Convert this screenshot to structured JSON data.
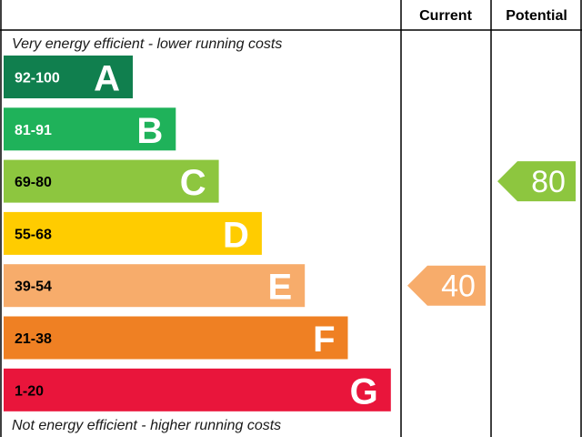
{
  "header": {
    "current": "Current",
    "potential": "Potential"
  },
  "notes": {
    "top": "Very energy efficient - lower running costs",
    "bottom": "Not energy efficient - higher running costs"
  },
  "chart_data": {
    "type": "bar",
    "categories": [
      "A",
      "B",
      "C",
      "D",
      "E",
      "F",
      "G"
    ],
    "bands": [
      {
        "letter": "A",
        "range": "92-100",
        "min": 92,
        "max": 100,
        "color": "#107f4e",
        "range_text_color": "#ffffff"
      },
      {
        "letter": "B",
        "range": "81-91",
        "min": 81,
        "max": 91,
        "color": "#1fb25a",
        "range_text_color": "#ffffff"
      },
      {
        "letter": "C",
        "range": "69-80",
        "min": 69,
        "max": 80,
        "color": "#8dc63f",
        "range_text_color": "#000000"
      },
      {
        "letter": "D",
        "range": "55-68",
        "min": 55,
        "max": 68,
        "color": "#ffcc00",
        "range_text_color": "#000000"
      },
      {
        "letter": "E",
        "range": "39-54",
        "min": 39,
        "max": 54,
        "color": "#f7ac6b",
        "range_text_color": "#000000"
      },
      {
        "letter": "F",
        "range": "21-38",
        "min": 21,
        "max": 38,
        "color": "#ef8023",
        "range_text_color": "#000000"
      },
      {
        "letter": "G",
        "range": "1-20",
        "min": 1,
        "max": 20,
        "color": "#e9153b",
        "range_text_color": "#000000"
      }
    ],
    "ratings": [
      {
        "column": "current",
        "value": 40,
        "band": "E",
        "color": "#f7ac6b"
      },
      {
        "column": "potential",
        "value": 80,
        "band": "C",
        "color": "#8dc63f"
      }
    ]
  }
}
